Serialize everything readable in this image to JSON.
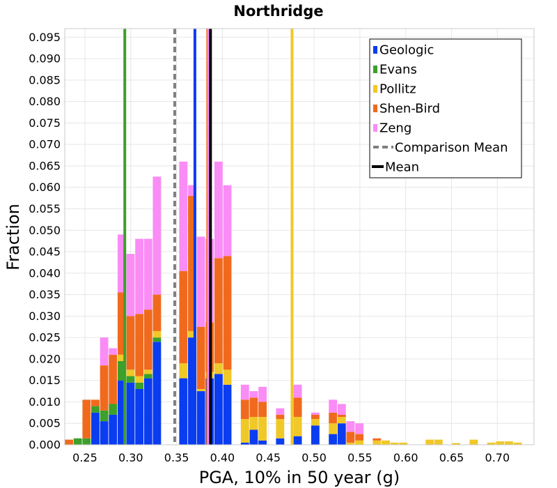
{
  "chart_data": {
    "type": "bar",
    "stacked": true,
    "title": "Northridge",
    "xlabel": "PGA, 10% in 50 year (g)",
    "ylabel": "Fraction",
    "xlim": [
      0.228,
      0.74
    ],
    "ylim": [
      0,
      0.097
    ],
    "grid": true,
    "legend_position": "top-right",
    "bin_width": 0.0096,
    "x_ticks": [
      "0.25",
      "0.30",
      "0.35",
      "0.40",
      "0.45",
      "0.50",
      "0.55",
      "0.60",
      "0.65",
      "0.70"
    ],
    "x_tick_values": [
      0.25,
      0.3,
      0.35,
      0.4,
      0.45,
      0.5,
      0.55,
      0.6,
      0.65,
      0.7
    ],
    "y_ticks": [
      "0.000",
      "0.005",
      "0.010",
      "0.015",
      "0.020",
      "0.025",
      "0.030",
      "0.035",
      "0.040",
      "0.045",
      "0.050",
      "0.055",
      "0.060",
      "0.065",
      "0.070",
      "0.075",
      "0.080",
      "0.085",
      "0.090",
      "0.095"
    ],
    "y_tick_values": [
      0,
      0.005,
      0.01,
      0.015,
      0.02,
      0.025,
      0.03,
      0.035,
      0.04,
      0.045,
      0.05,
      0.055,
      0.06,
      0.065,
      0.07,
      0.075,
      0.08,
      0.085,
      0.09,
      0.095
    ],
    "bins": [
      0.2329,
      0.2425,
      0.2521,
      0.2617,
      0.2713,
      0.2809,
      0.2905,
      0.3001,
      0.3097,
      0.3193,
      0.3289,
      0.3385,
      0.3481,
      0.3577,
      0.3673,
      0.3769,
      0.3865,
      0.3961,
      0.4057,
      0.4153,
      0.4249,
      0.4345,
      0.4441,
      0.4537,
      0.4633,
      0.4729,
      0.4825,
      0.4921,
      0.5017,
      0.5113,
      0.5209,
      0.5305,
      0.5401,
      0.5497,
      0.5593,
      0.5689,
      0.5785,
      0.5881,
      0.5977,
      0.6073,
      0.6169,
      0.6265,
      0.6361,
      0.6457,
      0.6553,
      0.6649,
      0.6745,
      0.6841,
      0.6937,
      0.7033,
      0.7129,
      0.7225,
      0.7321
    ],
    "series": [
      {
        "name": "Geologic",
        "color": "#0a3cf0",
        "values": [
          0,
          0,
          0,
          0.0075,
          0.0055,
          0.007,
          0.015,
          0.0145,
          0.013,
          0.0155,
          0.024,
          0,
          0,
          0.0155,
          0.025,
          0.0125,
          0.0155,
          0.0165,
          0.014,
          0,
          0.0005,
          0.0035,
          0.001,
          0,
          0.0015,
          0,
          0.002,
          0,
          0.0045,
          0,
          0.0025,
          0.005,
          0,
          0,
          0,
          0,
          0,
          0,
          0,
          0,
          0,
          0,
          0,
          0,
          0,
          0,
          0,
          0,
          0,
          0,
          0,
          0,
          0
        ]
      },
      {
        "name": "Evans",
        "color": "#3ca02a",
        "values": [
          0,
          0.0015,
          0.0015,
          0.0015,
          0.0025,
          0.0025,
          0.0045,
          0.0015,
          0.0015,
          0.001,
          0.001,
          0,
          0,
          0,
          0,
          0,
          0,
          0,
          0,
          0,
          0,
          0,
          0,
          0,
          0,
          0,
          0,
          0,
          0,
          0,
          0,
          0,
          0,
          0,
          0,
          0,
          0,
          0,
          0,
          0,
          0,
          0,
          0,
          0,
          0,
          0,
          0,
          0,
          0,
          0,
          0,
          0,
          0
        ]
      },
      {
        "name": "Pollitz",
        "color": "#f0c828",
        "values": [
          0,
          0,
          0,
          0,
          0,
          0,
          0.0015,
          0.0015,
          0.0015,
          0.001,
          0.0015,
          0,
          0,
          0.0035,
          0.0015,
          0.0005,
          0.0015,
          0.0025,
          0.0035,
          0,
          0.0055,
          0.003,
          0.0055,
          0,
          0.0045,
          0,
          0.0045,
          0,
          0.0015,
          0,
          0.0025,
          0.0015,
          0.0005,
          0.001,
          0,
          0.001,
          0.001,
          0.0005,
          0.0005,
          0,
          0,
          0.0012,
          0.0012,
          0,
          0.0004,
          0,
          0.0012,
          0,
          0.0005,
          0.0008,
          0.0008,
          0.0005,
          0
        ]
      },
      {
        "name": "Shen-Bird",
        "color": "#f06a1e",
        "values": [
          0.0012,
          0,
          0.009,
          0.0015,
          0.0105,
          0.0115,
          0.0145,
          0.0125,
          0.0145,
          0.014,
          0.0085,
          0,
          0,
          0.0215,
          0.0315,
          0.0145,
          0.0115,
          0.0245,
          0.0265,
          0,
          0.0045,
          0.0045,
          0.0035,
          0,
          0.001,
          0,
          0.0045,
          0,
          0.001,
          0,
          0.0025,
          0.0005,
          0.0025,
          0.0015,
          0,
          0.0005,
          0,
          0,
          0,
          0,
          0,
          0,
          0,
          0,
          0,
          0,
          0,
          0,
          0,
          0,
          0,
          0,
          0
        ]
      },
      {
        "name": "Zeng",
        "color": "#fa8cf5",
        "values": [
          0,
          0,
          0,
          0,
          0.0065,
          0.0015,
          0.0135,
          0.0145,
          0.0175,
          0.0165,
          0.0275,
          0,
          0,
          0.0255,
          0.0025,
          0.021,
          0.0195,
          0.0225,
          0.0165,
          0,
          0.0035,
          0.0015,
          0.0035,
          0,
          0.0015,
          0,
          0.003,
          0,
          0.0005,
          0,
          0.003,
          0.0025,
          0.0025,
          0.0025,
          0,
          0,
          0,
          0,
          0,
          0,
          0,
          0,
          0,
          0,
          0,
          0,
          0,
          0,
          0,
          0,
          0,
          0,
          0
        ]
      }
    ],
    "mean_lines": [
      {
        "name": "Geologic",
        "x": 0.37,
        "color": "#0a3cf0",
        "style": "solid",
        "legend": false
      },
      {
        "name": "Evans",
        "x": 0.2935,
        "color": "#3ca02a",
        "style": "solid",
        "legend": false
      },
      {
        "name": "Pollitz",
        "x": 0.476,
        "color": "#f0c828",
        "style": "solid",
        "legend": false
      },
      {
        "name": "Shen-Bird",
        "x": 0.384,
        "color": "#f06a1e",
        "style": "solid",
        "legend": false
      },
      {
        "name": "Zeng",
        "x": 0.385,
        "color": "#fa8cf5",
        "style": "solid",
        "legend": false
      },
      {
        "name": "Comparison Mean",
        "x": 0.348,
        "color": "#808080",
        "style": "dashed",
        "legend": true
      },
      {
        "name": "Mean",
        "x": 0.387,
        "color": "#000000",
        "style": "solid",
        "legend": true
      }
    ]
  }
}
